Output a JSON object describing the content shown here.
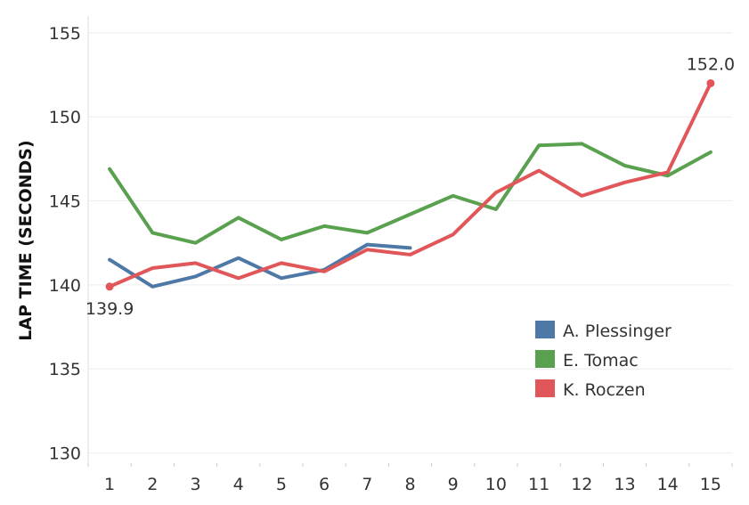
{
  "chart_data": {
    "type": "line",
    "title": "",
    "xlabel": "",
    "ylabel": "LAP TIME (SECONDS)",
    "ylim": [
      129.5,
      156
    ],
    "yticks": [
      130,
      135,
      140,
      145,
      150,
      155
    ],
    "categories": [
      "1",
      "2",
      "3",
      "4",
      "5",
      "6",
      "7",
      "8",
      "9",
      "10",
      "11",
      "12",
      "13",
      "14",
      "15"
    ],
    "grid": true,
    "legend_position": "bottom-right",
    "series": [
      {
        "name": "A. Plessinger",
        "color": "#4e79a7",
        "values": [
          141.5,
          139.9,
          140.5,
          141.6,
          140.4,
          140.9,
          142.4,
          142.2,
          null,
          null,
          null,
          null,
          null,
          null,
          null
        ]
      },
      {
        "name": "E. Tomac",
        "color": "#59a14f",
        "values": [
          146.9,
          143.1,
          142.5,
          144.0,
          142.7,
          143.5,
          143.1,
          144.2,
          145.3,
          144.5,
          148.3,
          148.4,
          147.1,
          146.5,
          147.9
        ]
      },
      {
        "name": "K. Roczen",
        "color": "#e15759",
        "values": [
          139.9,
          141.0,
          141.3,
          140.4,
          141.3,
          140.8,
          142.1,
          141.8,
          143.0,
          145.5,
          146.8,
          145.3,
          146.1,
          146.7,
          152.0
        ]
      }
    ],
    "annotations": [
      {
        "series": "K. Roczen",
        "index": 0,
        "label": "139.9",
        "position": "below"
      },
      {
        "series": "K. Roczen",
        "index": 14,
        "label": "152.0",
        "position": "above"
      }
    ]
  }
}
